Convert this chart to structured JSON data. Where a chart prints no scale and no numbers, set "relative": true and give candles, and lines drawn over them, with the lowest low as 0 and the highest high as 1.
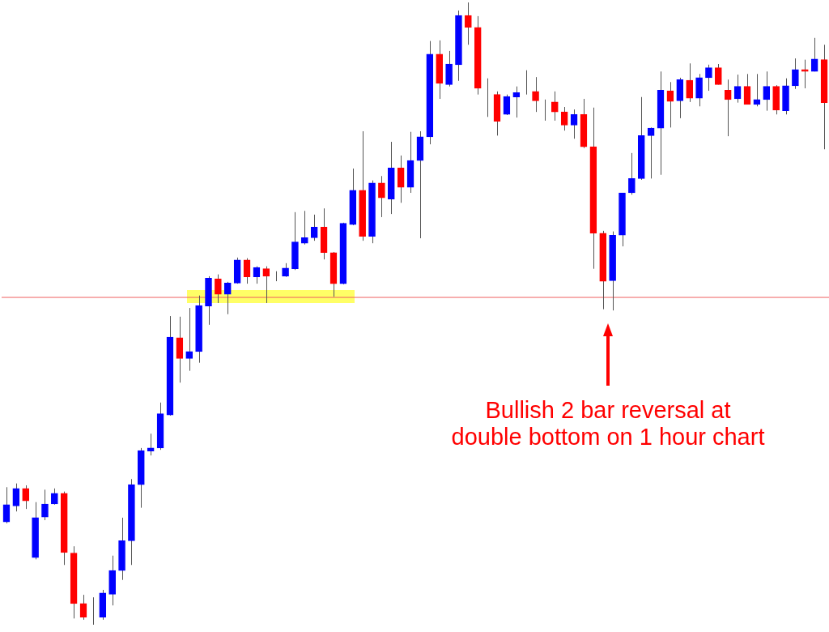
{
  "chart_data": {
    "type": "candlestick",
    "relative": true,
    "categories": [
      null,
      null,
      null,
      null,
      null,
      null,
      null,
      null,
      null,
      null,
      null,
      null,
      null,
      null,
      null,
      null,
      null,
      null,
      null,
      null,
      null,
      null,
      null,
      null,
      null,
      null,
      null,
      null,
      null,
      null,
      null,
      null,
      null,
      null,
      null,
      null,
      null,
      null,
      null,
      null,
      null,
      null,
      null,
      null,
      null,
      null,
      null,
      null,
      null,
      null,
      null,
      null,
      null,
      null,
      null,
      null,
      null,
      null,
      null,
      null,
      null,
      null,
      null,
      null,
      null,
      null,
      null,
      null,
      null,
      null,
      null,
      null,
      null,
      null,
      null,
      null,
      null,
      null,
      null,
      null,
      null,
      null,
      null,
      null,
      null,
      null
    ],
    "ohlc": [
      [
        0.165,
        0.221,
        0.163,
        0.193
      ],
      [
        0.191,
        0.227,
        0.182,
        0.219
      ],
      [
        0.219,
        0.224,
        0.186,
        0.199
      ],
      [
        0.108,
        0.197,
        0.105,
        0.172
      ],
      [
        0.173,
        0.217,
        0.168,
        0.194
      ],
      [
        0.194,
        0.219,
        0.193,
        0.211
      ],
      [
        0.211,
        0.214,
        0.096,
        0.116
      ],
      [
        0.115,
        0.126,
        0.01,
        0.034
      ],
      [
        0.034,
        0.048,
        0.008,
        0.012
      ],
      [
        0.012,
        0.044,
        0,
        0.012
      ],
      [
        0.012,
        0.056,
        0.008,
        0.051
      ],
      [
        0.049,
        0.111,
        0.031,
        0.087
      ],
      [
        0.087,
        0.172,
        0.072,
        0.135
      ],
      [
        0.135,
        0.234,
        0.096,
        0.225
      ],
      [
        0.225,
        0.284,
        0.188,
        0.28
      ],
      [
        0.279,
        0.307,
        0.272,
        0.284
      ],
      [
        0.284,
        0.357,
        0.281,
        0.339
      ],
      [
        0.337,
        0.496,
        0.336,
        0.462
      ],
      [
        0.461,
        0.495,
        0.389,
        0.428
      ],
      [
        0.428,
        0.509,
        0.408,
        0.439
      ],
      [
        0.439,
        0.529,
        0.421,
        0.513
      ],
      [
        0.512,
        0.56,
        0.482,
        0.557
      ],
      [
        0.556,
        0.563,
        0.517,
        0.531
      ],
      [
        0.531,
        0.551,
        0.499,
        0.549
      ],
      [
        0.549,
        0.59,
        0.548,
        0.586
      ],
      [
        0.586,
        0.589,
        0.548,
        0.559
      ],
      [
        0.559,
        0.576,
        0.548,
        0.574
      ],
      [
        0.572,
        0.576,
        0.517,
        0.56
      ],
      [
        0.56,
        0.568,
        0.552,
        0.56
      ],
      [
        0.56,
        0.581,
        0.559,
        0.573
      ],
      [
        0.572,
        0.663,
        0.57,
        0.615
      ],
      [
        0.613,
        0.665,
        0.611,
        0.622
      ],
      [
        0.622,
        0.659,
        0.617,
        0.639
      ],
      [
        0.639,
        0.669,
        0.587,
        0.598
      ],
      [
        0.598,
        0.599,
        0.527,
        0.548
      ],
      [
        0.548,
        0.646,
        0.547,
        0.645
      ],
      [
        0.643,
        0.733,
        0.642,
        0.698
      ],
      [
        0.698,
        0.793,
        0.617,
        0.624
      ],
      [
        0.624,
        0.714,
        0.613,
        0.71
      ],
      [
        0.71,
        0.721,
        0.655,
        0.686
      ],
      [
        0.684,
        0.776,
        0.66,
        0.734
      ],
      [
        0.734,
        0.754,
        0.678,
        0.703
      ],
      [
        0.703,
        0.792,
        0.694,
        0.746
      ],
      [
        0.746,
        0.793,
        0.621,
        0.784
      ],
      [
        0.784,
        0.938,
        0.772,
        0.917
      ],
      [
        0.917,
        0.939,
        0.845,
        0.87
      ],
      [
        0.868,
        0.922,
        0.865,
        0.901
      ],
      [
        0.9,
        0.987,
        0.874,
        0.979
      ],
      [
        0.979,
        1,
        0.932,
        0.96
      ],
      [
        0.96,
        0.978,
        0.852,
        0.862
      ],
      [
        0.861,
        0.878,
        0.816,
        0.861
      ],
      [
        0.852,
        0.857,
        0.786,
        0.809
      ],
      [
        0.82,
        0.852,
        0.819,
        0.849
      ],
      [
        0.848,
        0.865,
        0.815,
        0.855
      ],
      [
        0.855,
        0.891,
        0.852,
        0.855
      ],
      [
        0.857,
        0.88,
        0.824,
        0.842
      ],
      [
        0.842,
        0.844,
        0.81,
        0.842
      ],
      [
        0.84,
        0.857,
        0.81,
        0.824
      ],
      [
        0.824,
        0.832,
        0.794,
        0.803
      ],
      [
        0.803,
        0.828,
        0.781,
        0.82
      ],
      [
        0.82,
        0.845,
        0.766,
        0.768
      ],
      [
        0.768,
        0.831,
        0.572,
        0.629
      ],
      [
        0.629,
        0.633,
        0.507,
        0.552
      ],
      [
        0.553,
        0.632,
        0.505,
        0.626
      ],
      [
        0.626,
        0.694,
        0.608,
        0.694
      ],
      [
        0.694,
        0.758,
        0.691,
        0.717
      ],
      [
        0.717,
        0.848,
        0.715,
        0.786
      ],
      [
        0.786,
        0.799,
        0.717,
        0.798
      ],
      [
        0.798,
        0.889,
        0.723,
        0.859
      ],
      [
        0.858,
        0.872,
        0.799,
        0.841
      ],
      [
        0.842,
        0.879,
        0.814,
        0.876
      ],
      [
        0.875,
        0.902,
        0.84,
        0.846
      ],
      [
        0.846,
        0.885,
        0.833,
        0.879
      ],
      [
        0.879,
        0.9,
        0.858,
        0.895
      ],
      [
        0.895,
        0.901,
        0.868,
        0.868
      ],
      [
        0.859,
        0.876,
        0.785,
        0.844
      ],
      [
        0.845,
        0.884,
        0.839,
        0.865
      ],
      [
        0.865,
        0.885,
        0.836,
        0.836
      ],
      [
        0.836,
        0.885,
        0.833,
        0.844
      ],
      [
        0.844,
        0.889,
        0.826,
        0.865
      ],
      [
        0.865,
        0.867,
        0.82,
        0.827
      ],
      [
        0.826,
        0.878,
        0.82,
        0.866
      ],
      [
        0.866,
        0.91,
        0.861,
        0.892
      ],
      [
        0.892,
        0.908,
        0.862,
        0.889
      ],
      [
        0.889,
        0.943,
        0.889,
        0.909
      ],
      [
        0.908,
        0.932,
        0.764,
        0.839
      ]
    ],
    "colors": [
      "#0000ff",
      "#0000ff",
      "#ff0000",
      "#0000ff",
      "#0000ff",
      "#0000ff",
      "#ff0000",
      "#ff0000",
      "#ff0000",
      "#000000",
      "#0000ff",
      "#0000ff",
      "#0000ff",
      "#0000ff",
      "#0000ff",
      "#0000ff",
      "#0000ff",
      "#0000ff",
      "#ff0000",
      "#0000ff",
      "#0000ff",
      "#0000ff",
      "#ff0000",
      "#0000ff",
      "#0000ff",
      "#ff0000",
      "#0000ff",
      "#ff0000",
      "#000000",
      "#0000ff",
      "#0000ff",
      "#0000ff",
      "#0000ff",
      "#ff0000",
      "#ff0000",
      "#0000ff",
      "#0000ff",
      "#ff0000",
      "#0000ff",
      "#ff0000",
      "#0000ff",
      "#ff0000",
      "#0000ff",
      "#0000ff",
      "#0000ff",
      "#ff0000",
      "#0000ff",
      "#0000ff",
      "#ff0000",
      "#ff0000",
      "#000000",
      "#ff0000",
      "#0000ff",
      "#0000ff",
      "#000000",
      "#ff0000",
      "#000000",
      "#ff0000",
      "#ff0000",
      "#0000ff",
      "#ff0000",
      "#ff0000",
      "#ff0000",
      "#0000ff",
      "#0000ff",
      "#0000ff",
      "#0000ff",
      "#0000ff",
      "#0000ff",
      "#ff0000",
      "#0000ff",
      "#ff0000",
      "#0000ff",
      "#0000ff",
      "#ff0000",
      "#ff0000",
      "#0000ff",
      "#ff0000",
      "#0000ff",
      "#0000ff",
      "#ff0000",
      "#0000ff",
      "#0000ff",
      "#ff0000",
      "#0000ff",
      "#ff0000"
    ],
    "ref_lines": [
      {
        "axis": "y",
        "value": 0.526,
        "color": "#f06060"
      }
    ],
    "annotations": [
      "Bullish 2 bar reversal at double bottom on 1 hour chart"
    ],
    "legend": false
  }
}
